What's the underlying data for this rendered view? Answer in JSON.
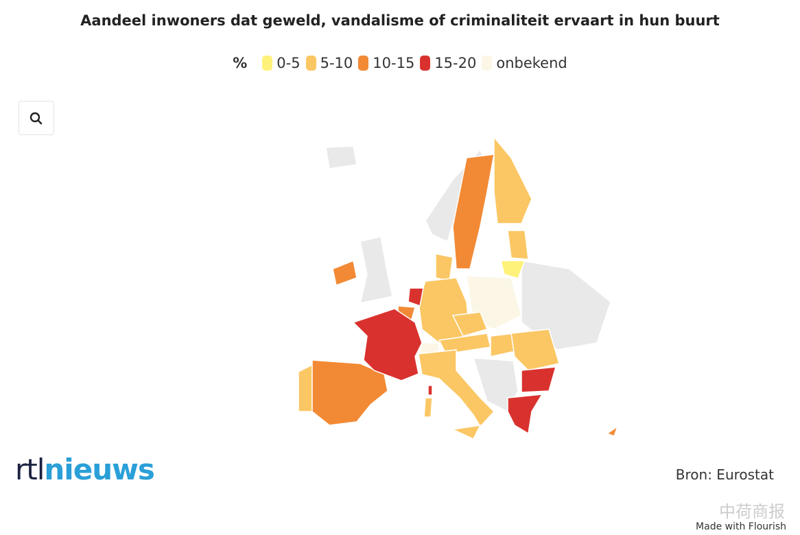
{
  "title": "Aandeel inwoners dat geweld, vandalisme of criminaliteit ervaart in hun buurt",
  "legend": {
    "unit": "%",
    "items": [
      {
        "label": "0-5",
        "color": "#fff27a"
      },
      {
        "label": "5-10",
        "color": "#fbc764"
      },
      {
        "label": "10-15",
        "color": "#f28a35"
      },
      {
        "label": "15-20",
        "color": "#d9322e"
      },
      {
        "label": "onbekend",
        "color": "#fbf6e6"
      }
    ]
  },
  "logo": {
    "part1": "rtl",
    "part2": "nieuws"
  },
  "source": "Bron: Eurostat",
  "watermark": "中荷商报",
  "credit": "Made with Flourish"
}
